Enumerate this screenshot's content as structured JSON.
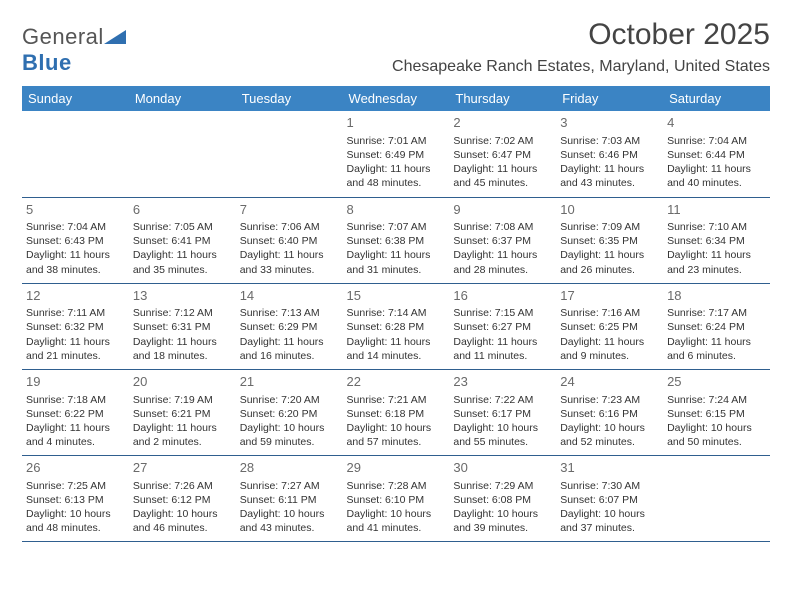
{
  "logo": {
    "text_general": "General",
    "text_blue": "Blue"
  },
  "title": "October 2025",
  "location": "Chesapeake Ranch Estates, Maryland, United States",
  "colors": {
    "header_bg": "#3b84c4",
    "header_text": "#ffffff",
    "row_border": "#2f5f8f",
    "daynum": "#6a6a6a",
    "body_text": "#333333",
    "logo_gray": "#555555",
    "logo_blue": "#2f6fb0"
  },
  "weekdays": [
    "Sunday",
    "Monday",
    "Tuesday",
    "Wednesday",
    "Thursday",
    "Friday",
    "Saturday"
  ],
  "weeks": [
    [
      null,
      null,
      null,
      {
        "n": "1",
        "sr": "7:01 AM",
        "ss": "6:49 PM",
        "dl1": "Daylight: 11 hours",
        "dl2": "and 48 minutes."
      },
      {
        "n": "2",
        "sr": "7:02 AM",
        "ss": "6:47 PM",
        "dl1": "Daylight: 11 hours",
        "dl2": "and 45 minutes."
      },
      {
        "n": "3",
        "sr": "7:03 AM",
        "ss": "6:46 PM",
        "dl1": "Daylight: 11 hours",
        "dl2": "and 43 minutes."
      },
      {
        "n": "4",
        "sr": "7:04 AM",
        "ss": "6:44 PM",
        "dl1": "Daylight: 11 hours",
        "dl2": "and 40 minutes."
      }
    ],
    [
      {
        "n": "5",
        "sr": "7:04 AM",
        "ss": "6:43 PM",
        "dl1": "Daylight: 11 hours",
        "dl2": "and 38 minutes."
      },
      {
        "n": "6",
        "sr": "7:05 AM",
        "ss": "6:41 PM",
        "dl1": "Daylight: 11 hours",
        "dl2": "and 35 minutes."
      },
      {
        "n": "7",
        "sr": "7:06 AM",
        "ss": "6:40 PM",
        "dl1": "Daylight: 11 hours",
        "dl2": "and 33 minutes."
      },
      {
        "n": "8",
        "sr": "7:07 AM",
        "ss": "6:38 PM",
        "dl1": "Daylight: 11 hours",
        "dl2": "and 31 minutes."
      },
      {
        "n": "9",
        "sr": "7:08 AM",
        "ss": "6:37 PM",
        "dl1": "Daylight: 11 hours",
        "dl2": "and 28 minutes."
      },
      {
        "n": "10",
        "sr": "7:09 AM",
        "ss": "6:35 PM",
        "dl1": "Daylight: 11 hours",
        "dl2": "and 26 minutes."
      },
      {
        "n": "11",
        "sr": "7:10 AM",
        "ss": "6:34 PM",
        "dl1": "Daylight: 11 hours",
        "dl2": "and 23 minutes."
      }
    ],
    [
      {
        "n": "12",
        "sr": "7:11 AM",
        "ss": "6:32 PM",
        "dl1": "Daylight: 11 hours",
        "dl2": "and 21 minutes."
      },
      {
        "n": "13",
        "sr": "7:12 AM",
        "ss": "6:31 PM",
        "dl1": "Daylight: 11 hours",
        "dl2": "and 18 minutes."
      },
      {
        "n": "14",
        "sr": "7:13 AM",
        "ss": "6:29 PM",
        "dl1": "Daylight: 11 hours",
        "dl2": "and 16 minutes."
      },
      {
        "n": "15",
        "sr": "7:14 AM",
        "ss": "6:28 PM",
        "dl1": "Daylight: 11 hours",
        "dl2": "and 14 minutes."
      },
      {
        "n": "16",
        "sr": "7:15 AM",
        "ss": "6:27 PM",
        "dl1": "Daylight: 11 hours",
        "dl2": "and 11 minutes."
      },
      {
        "n": "17",
        "sr": "7:16 AM",
        "ss": "6:25 PM",
        "dl1": "Daylight: 11 hours",
        "dl2": "and 9 minutes."
      },
      {
        "n": "18",
        "sr": "7:17 AM",
        "ss": "6:24 PM",
        "dl1": "Daylight: 11 hours",
        "dl2": "and 6 minutes."
      }
    ],
    [
      {
        "n": "19",
        "sr": "7:18 AM",
        "ss": "6:22 PM",
        "dl1": "Daylight: 11 hours",
        "dl2": "and 4 minutes."
      },
      {
        "n": "20",
        "sr": "7:19 AM",
        "ss": "6:21 PM",
        "dl1": "Daylight: 11 hours",
        "dl2": "and 2 minutes."
      },
      {
        "n": "21",
        "sr": "7:20 AM",
        "ss": "6:20 PM",
        "dl1": "Daylight: 10 hours",
        "dl2": "and 59 minutes."
      },
      {
        "n": "22",
        "sr": "7:21 AM",
        "ss": "6:18 PM",
        "dl1": "Daylight: 10 hours",
        "dl2": "and 57 minutes."
      },
      {
        "n": "23",
        "sr": "7:22 AM",
        "ss": "6:17 PM",
        "dl1": "Daylight: 10 hours",
        "dl2": "and 55 minutes."
      },
      {
        "n": "24",
        "sr": "7:23 AM",
        "ss": "6:16 PM",
        "dl1": "Daylight: 10 hours",
        "dl2": "and 52 minutes."
      },
      {
        "n": "25",
        "sr": "7:24 AM",
        "ss": "6:15 PM",
        "dl1": "Daylight: 10 hours",
        "dl2": "and 50 minutes."
      }
    ],
    [
      {
        "n": "26",
        "sr": "7:25 AM",
        "ss": "6:13 PM",
        "dl1": "Daylight: 10 hours",
        "dl2": "and 48 minutes."
      },
      {
        "n": "27",
        "sr": "7:26 AM",
        "ss": "6:12 PM",
        "dl1": "Daylight: 10 hours",
        "dl2": "and 46 minutes."
      },
      {
        "n": "28",
        "sr": "7:27 AM",
        "ss": "6:11 PM",
        "dl1": "Daylight: 10 hours",
        "dl2": "and 43 minutes."
      },
      {
        "n": "29",
        "sr": "7:28 AM",
        "ss": "6:10 PM",
        "dl1": "Daylight: 10 hours",
        "dl2": "and 41 minutes."
      },
      {
        "n": "30",
        "sr": "7:29 AM",
        "ss": "6:08 PM",
        "dl1": "Daylight: 10 hours",
        "dl2": "and 39 minutes."
      },
      {
        "n": "31",
        "sr": "7:30 AM",
        "ss": "6:07 PM",
        "dl1": "Daylight: 10 hours",
        "dl2": "and 37 minutes."
      },
      null
    ]
  ]
}
